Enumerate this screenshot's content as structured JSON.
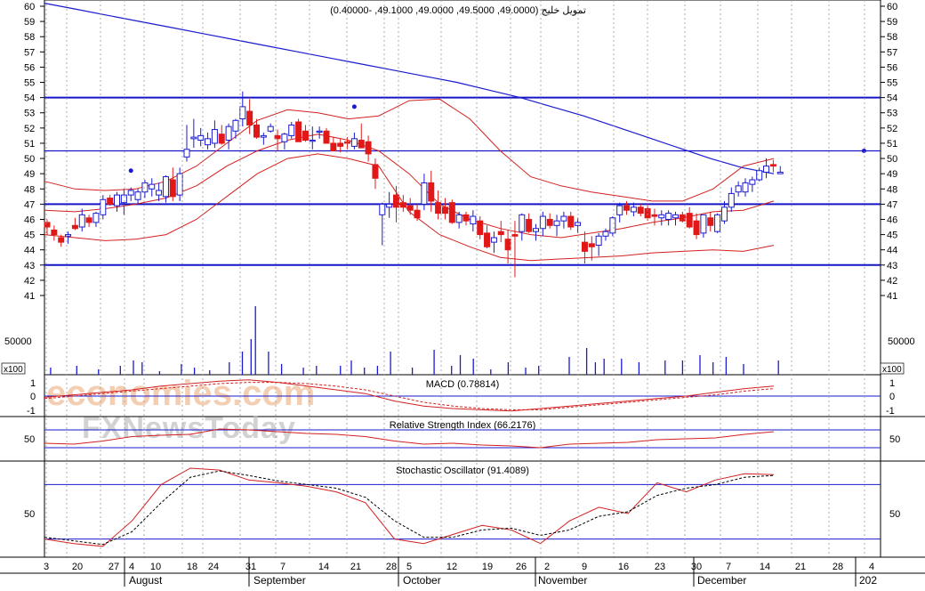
{
  "chart_data": [
    {
      "type": "candlestick",
      "title": "تمويل خليج (49.0000, 49.5000, 49.0000, 49.1000, -0.40000)",
      "ylim": [
        40,
        60
      ],
      "y_ticks": [
        41,
        42,
        43,
        44,
        45,
        46,
        47,
        48,
        49,
        50,
        51,
        52,
        53,
        54,
        55,
        56,
        57,
        58,
        59,
        60
      ],
      "horizontal_lines": [
        54,
        50.5,
        47,
        43
      ],
      "series": [
        {
          "name": "price",
          "ohlc": [
            [
              45.8,
              46.0,
              45.0,
              45.5
            ],
            [
              45.3,
              45.6,
              44.6,
              45.0
            ],
            [
              44.8,
              45.0,
              44.2,
              44.5
            ],
            [
              44.9,
              45.2,
              44.4,
              45.0
            ],
            [
              45.6,
              46.1,
              45.3,
              45.4
            ],
            [
              45.5,
              46.7,
              45.2,
              46.3
            ],
            [
              46.1,
              46.3,
              45.5,
              45.8
            ],
            [
              45.8,
              46.5,
              45.5,
              46.4
            ],
            [
              46.3,
              47.6,
              46.0,
              47.3
            ],
            [
              47.4,
              47.6,
              46.9,
              47.0
            ],
            [
              46.9,
              47.8,
              46.5,
              47.6
            ],
            [
              47.1,
              48.0,
              46.3,
              47.6
            ],
            [
              47.6,
              48.1,
              47.2,
              47.9
            ],
            [
              47.3,
              48.0,
              47.0,
              47.8
            ],
            [
              47.8,
              48.6,
              47.4,
              48.4
            ],
            [
              48.0,
              48.7,
              47.5,
              48.3
            ],
            [
              47.6,
              48.4,
              47.2,
              47.9
            ],
            [
              47.5,
              48.9,
              47.1,
              48.8
            ],
            [
              48.6,
              49.4,
              47.2,
              47.5
            ],
            [
              47.6,
              49.4,
              47.2,
              49.0
            ],
            [
              50.1,
              52.2,
              49.8,
              50.6
            ],
            [
              51.3,
              52.6,
              50.7,
              51.4
            ],
            [
              51.2,
              52.0,
              50.8,
              51.5
            ],
            [
              50.9,
              51.7,
              50.6,
              51.3
            ],
            [
              51.0,
              52.5,
              50.7,
              51.9
            ],
            [
              51.6,
              52.2,
              50.9,
              51.0
            ],
            [
              51.2,
              52.3,
              50.6,
              52.1
            ],
            [
              51.8,
              52.6,
              51.3,
              52.5
            ],
            [
              52.6,
              54.4,
              52.1,
              53.4
            ],
            [
              53.1,
              53.9,
              51.6,
              52.2
            ],
            [
              52.2,
              52.6,
              51.3,
              51.4
            ],
            [
              51.4,
              51.7,
              50.9,
              51.5
            ],
            [
              51.8,
              52.3,
              51.7,
              52.1
            ],
            [
              51.5,
              51.9,
              50.5,
              51.3
            ],
            [
              51.1,
              51.7,
              50.6,
              51.6
            ],
            [
              51.5,
              52.4,
              51.3,
              52.2
            ],
            [
              52.4,
              52.6,
              51.1,
              51.1
            ],
            [
              51.8,
              52.2,
              51.1,
              51.2
            ],
            [
              51.2,
              52.1,
              50.6,
              51.2
            ],
            [
              51.8,
              52.1,
              51.3,
              51.8
            ],
            [
              51.8,
              52.0,
              51.0,
              51.0
            ],
            [
              51.0,
              51.4,
              50.6,
              50.5
            ],
            [
              51.0,
              51.3,
              50.4,
              50.8
            ],
            [
              51.1,
              51.4,
              50.6,
              51.0
            ],
            [
              50.8,
              51.7,
              50.6,
              51.3
            ],
            [
              51.2,
              52.3,
              50.7,
              50.7
            ],
            [
              51.1,
              51.5,
              49.8,
              50.3
            ],
            [
              49.6,
              50.0,
              48.0,
              48.7
            ],
            [
              46.3,
              47.1,
              44.3,
              47.0
            ],
            [
              46.8,
              47.8,
              46.1,
              47.0
            ],
            [
              47.6,
              48.2,
              45.8,
              46.8
            ],
            [
              47.1,
              47.6,
              46.5,
              46.8
            ],
            [
              46.9,
              47.4,
              46.3,
              46.6
            ],
            [
              46.6,
              47.0,
              45.9,
              46.1
            ],
            [
              47.0,
              49.0,
              46.6,
              48.4
            ],
            [
              48.4,
              49.2,
              46.5,
              47.2
            ],
            [
              47.1,
              47.9,
              46.0,
              46.4
            ],
            [
              46.8,
              47.4,
              46.0,
              46.4
            ],
            [
              47.1,
              47.3,
              45.7,
              45.8
            ],
            [
              45.8,
              46.5,
              45.4,
              46.3
            ],
            [
              46.3,
              46.5,
              45.6,
              45.9
            ],
            [
              45.7,
              46.6,
              45.2,
              46.2
            ],
            [
              45.9,
              46.2,
              44.7,
              45.0
            ],
            [
              45.1,
              45.6,
              44.1,
              44.2
            ],
            [
              44.5,
              45.2,
              43.8,
              44.8
            ],
            [
              45.2,
              45.9,
              44.5,
              45.0
            ],
            [
              44.7,
              45.3,
              43.1,
              44.0
            ],
            [
              45.0,
              45.9,
              42.2,
              44.9
            ],
            [
              45.2,
              46.4,
              44.6,
              46.3
            ],
            [
              46.0,
              46.4,
              45.1,
              45.2
            ],
            [
              45.2,
              45.7,
              44.6,
              45.4
            ],
            [
              45.4,
              46.5,
              44.9,
              46.2
            ],
            [
              46.0,
              46.4,
              45.4,
              45.6
            ],
            [
              45.6,
              46.3,
              44.9,
              45.9
            ],
            [
              45.9,
              46.5,
              45.4,
              46.2
            ],
            [
              46.2,
              46.5,
              45.3,
              45.5
            ],
            [
              45.6,
              46.1,
              45.1,
              45.8
            ],
            [
              44.5,
              45.2,
              43.1,
              43.9
            ],
            [
              44.4,
              44.9,
              43.3,
              44.2
            ],
            [
              44.3,
              45.1,
              43.6,
              44.9
            ],
            [
              44.9,
              45.4,
              44.6,
              45.2
            ],
            [
              45.1,
              46.2,
              44.9,
              46.1
            ],
            [
              46.3,
              47.1,
              45.8,
              46.9
            ],
            [
              46.9,
              47.2,
              46.3,
              46.6
            ],
            [
              46.5,
              47.1,
              46.2,
              46.8
            ],
            [
              46.8,
              47.0,
              46.2,
              46.4
            ],
            [
              46.7,
              47.0,
              45.9,
              46.1
            ],
            [
              46.3,
              46.7,
              45.6,
              46.2
            ],
            [
              46.1,
              46.6,
              45.6,
              46.3
            ],
            [
              46.0,
              46.6,
              45.6,
              46.4
            ],
            [
              46.1,
              46.5,
              45.6,
              46.3
            ],
            [
              46.3,
              46.5,
              45.8,
              45.9
            ],
            [
              46.4,
              46.8,
              45.4,
              45.5
            ],
            [
              45.9,
              46.4,
              44.7,
              45.0
            ],
            [
              45.1,
              46.3,
              44.8,
              46.3
            ],
            [
              46.1,
              46.5,
              45.2,
              45.6
            ],
            [
              45.2,
              46.4,
              45.1,
              46.3
            ],
            [
              45.9,
              47.2,
              45.7,
              46.8
            ],
            [
              46.8,
              48.1,
              46.5,
              47.7
            ],
            [
              47.8,
              48.5,
              47.5,
              48.2
            ],
            [
              47.8,
              48.7,
              47.5,
              48.4
            ],
            [
              48.3,
              48.8,
              47.8,
              48.6
            ],
            [
              48.6,
              49.4,
              48.5,
              49.2
            ],
            [
              49.1,
              50.0,
              48.7,
              49.5
            ],
            [
              49.6,
              49.9,
              49.1,
              49.5
            ],
            [
              49.0,
              49.5,
              49.0,
              49.1
            ]
          ]
        },
        {
          "name": "moving-average-long",
          "values": [
            60.2,
            59.8,
            59.4,
            59.0,
            58.6,
            58.2,
            57.8,
            57.4,
            57.0,
            56.6,
            56.2,
            55.8,
            55.4,
            55.0,
            54.5,
            54.0,
            53.4,
            52.8,
            52.1,
            51.4,
            50.7,
            50.0,
            49.4,
            49.0
          ]
        },
        {
          "name": "bollinger-upper",
          "values": [
            48.5,
            48.0,
            47.9,
            48.0,
            48.5,
            49.5,
            51.0,
            52.5,
            53.2,
            53.0,
            52.6,
            52.8,
            53.8,
            53.9,
            52.6,
            50.5,
            48.8,
            48.2,
            47.8,
            47.5,
            47.2,
            47.2,
            48.0,
            49.5,
            50.0
          ]
        },
        {
          "name": "bollinger-middle",
          "values": [
            46.6,
            46.5,
            46.7,
            47.0,
            47.4,
            48.2,
            49.5,
            50.5,
            51.2,
            51.6,
            51.2,
            50.5,
            49.0,
            47.0,
            46.0,
            45.4,
            45.0,
            44.8,
            45.1,
            45.4,
            45.8,
            46.1,
            46.5,
            46.6,
            47.2
          ]
        },
        {
          "name": "bollinger-lower",
          "values": [
            45.0,
            44.8,
            44.6,
            44.7,
            45.0,
            46.0,
            47.5,
            49.0,
            50.0,
            50.3,
            50.0,
            49.5,
            46.5,
            45.0,
            44.2,
            43.5,
            43.3,
            43.4,
            43.5,
            43.6,
            43.8,
            43.9,
            44.0,
            43.9,
            44.3
          ]
        },
        {
          "name": "parabolic-sar",
          "points": [
            [
              12,
              49.2
            ],
            [
              44,
              53.4
            ],
            [
              117,
              50.5
            ]
          ]
        }
      ]
    },
    {
      "type": "bar",
      "title": "",
      "y_tick_labels": [
        "50000"
      ],
      "unit_label": "x100"
    },
    {
      "type": "line",
      "title": "MACD (0.78814)",
      "y_tick_labels": [
        "1",
        "0",
        "-1"
      ],
      "ylim": [
        -1.2,
        1.2
      ]
    },
    {
      "type": "line",
      "title": "Relative Strength Index (66.2176)",
      "y_tick_labels": [
        "50"
      ],
      "ylim": [
        0,
        100
      ],
      "reference_lines": [
        70,
        30
      ]
    },
    {
      "type": "line",
      "title": "Stochastic Oscillator (91.4089)",
      "y_tick_labels": [
        "50"
      ],
      "ylim": [
        0,
        100
      ],
      "reference_lines": [
        80,
        20
      ]
    }
  ],
  "x_axis": {
    "day_labels": [
      "3",
      "20",
      "27",
      "4",
      "10",
      "18",
      "24",
      "31",
      "7",
      "14",
      "21",
      "28",
      "5",
      "12",
      "19",
      "26",
      "2",
      "9",
      "16",
      "23",
      "30",
      "7",
      "14",
      "21",
      "28",
      "4"
    ],
    "month_labels": [
      "August",
      "September",
      "October",
      "November",
      "December",
      "202"
    ]
  },
  "watermark": {
    "line1": "economies.com",
    "line2": "FXNewsToday"
  }
}
